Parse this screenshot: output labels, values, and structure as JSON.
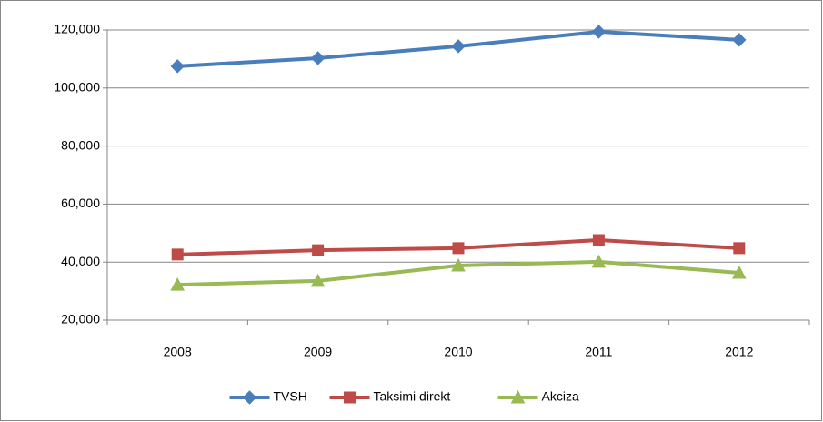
{
  "chart_data": {
    "type": "line",
    "categories": [
      "2008",
      "2009",
      "2010",
      "2011",
      "2012"
    ],
    "series": [
      {
        "name": "TVSH",
        "color": "#4a7ebb",
        "marker": "diamond",
        "values": [
          107500,
          110300,
          114400,
          119400,
          116600
        ]
      },
      {
        "name": "Taksimi direkt",
        "color": "#be4b48",
        "marker": "square",
        "values": [
          42600,
          44100,
          44800,
          47600,
          44800
        ]
      },
      {
        "name": "Akciza",
        "color": "#98b954",
        "marker": "triangle",
        "values": [
          32200,
          33500,
          38800,
          40100,
          36300
        ]
      }
    ],
    "ylim": [
      20000,
      120000
    ],
    "yticks": [
      {
        "value": 20000,
        "label": "20,000"
      },
      {
        "value": 40000,
        "label": "40,000"
      },
      {
        "value": 60000,
        "label": "60,000"
      },
      {
        "value": 80000,
        "label": "80,000"
      },
      {
        "value": 100000,
        "label": "100,000"
      },
      {
        "value": 120000,
        "label": "120,000"
      }
    ],
    "grid": true,
    "legend": "bottom"
  }
}
